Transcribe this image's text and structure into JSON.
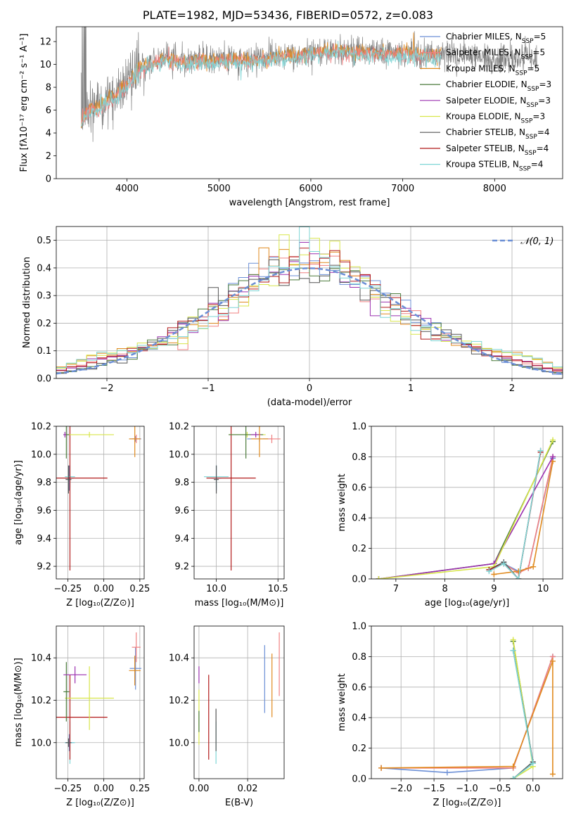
{
  "title": "PLATE=1982, MJD=53436, FIBERID=0572, z=0.083",
  "colors": {
    "chabrier_miles": "#6b8fd6",
    "salpeter_miles": "#f08080",
    "kroupa_miles": "#e08a1e",
    "chabrier_elodie": "#4a7a3a",
    "salpeter_elodie": "#9b30b0",
    "kroupa_elodie": "#d8e64a",
    "chabrier_stelib": "#555555",
    "salpeter_stelib": "#b21a1a",
    "kroupa_stelib": "#7fd6d6",
    "normal": "#6b8fd6"
  },
  "chart_data": [
    {
      "id": "spectrum",
      "type": "line",
      "title": "",
      "xlabel": "wavelength [Angstrom, rest frame]",
      "ylabel": "Flux [fλ10⁻¹⁷ erg cm⁻² s⁻¹ A⁻¹]",
      "xlim": [
        3230,
        8740
      ],
      "ylim": [
        0,
        13.3
      ],
      "xticks": [
        4000,
        5000,
        6000,
        7000,
        8000
      ],
      "yticks": [
        0,
        2,
        4,
        6,
        8,
        10,
        12
      ],
      "legend_position": "right",
      "legend": [
        "Chabrier MILES, N_SSP=5",
        "Salpeter MILES, N_SSP=5",
        "Kroupa MILES, N_SSP=5",
        "Chabrier ELODIE, N_SSP=3",
        "Salpeter ELODIE, N_SSP=3",
        "Kroupa ELODIE, N_SSP=3",
        "Chabrier STELIB, N_SSP=4",
        "Salpeter STELIB, N_SSP=4",
        "Kroupa STELIB, N_SSP=4"
      ],
      "continuum": {
        "x": [
          3500,
          3550,
          3700,
          3800,
          3900,
          4000,
          4100,
          4200,
          4400,
          4600,
          5000,
          5400,
          5800,
          6200,
          6600,
          7000,
          7400,
          7800,
          8200,
          8600
        ],
        "y": [
          5.0,
          6.0,
          6.3,
          7.0,
          7.6,
          8.3,
          9.4,
          10.0,
          10.5,
          10.3,
          10.4,
          10.5,
          10.8,
          11.2,
          11.1,
          11.0,
          10.9,
          10.6,
          10.5,
          10.3
        ]
      },
      "data_extent_angstrom": [
        3500,
        8460
      ],
      "model_extent_angstrom": [
        3500,
        7420
      ]
    },
    {
      "id": "residuals",
      "type": "line",
      "xlabel": "(data-model)/error",
      "ylabel": "Normed distribution",
      "xlim": [
        -2.5,
        2.5
      ],
      "ylim": [
        0,
        0.55
      ],
      "xticks": [
        -2,
        -1,
        0,
        1,
        2
      ],
      "yticks": [
        0.0,
        0.1,
        0.2,
        0.3,
        0.4,
        0.5
      ],
      "legend": [
        "𝒩(0, 1)"
      ],
      "legend_position": "top-right",
      "bin_width": 0.1
    },
    {
      "id": "age_vs_Z",
      "type": "scatter",
      "xlabel": "Z [log₁₀(Z/Z⊙)]",
      "ylabel": "age  [log₁₀(age/yr)]",
      "xlim": [
        -0.33,
        0.28
      ],
      "ylim": [
        9.11,
        10.2
      ],
      "xticks": [
        -0.25,
        0.0,
        0.25
      ],
      "yticks": [
        9.2,
        9.4,
        9.6,
        9.8,
        10.0,
        10.2
      ],
      "errorbars": [
        {
          "model": "chabrier_miles",
          "x": -0.24,
          "xerr": 0.03,
          "y": 9.83,
          "yerr": 0.09
        },
        {
          "model": "kroupa_stelib",
          "x": -0.235,
          "xerr": 0.035,
          "y": 9.84,
          "yerr": 0.08
        },
        {
          "model": "salpeter_stelib",
          "x": -0.235,
          "xerr": 0.26,
          "y": 9.83,
          "yerr": 0.66
        },
        {
          "model": "chabrier_stelib",
          "x": -0.245,
          "xerr": 0.02,
          "y": 9.82,
          "yerr": 0.1
        },
        {
          "model": "kroupa_elodie",
          "x": -0.1,
          "xerr": 0.17,
          "y": 10.14,
          "yerr": 0.02
        },
        {
          "model": "chabrier_elodie",
          "x": -0.26,
          "xerr": 0.02,
          "y": 10.14,
          "yerr": 0.17
        },
        {
          "model": "salpeter_elodie",
          "x": -0.27,
          "xerr": 0.01,
          "y": 10.14,
          "yerr": 0.02
        },
        {
          "model": "chabrier_miles",
          "x": 0.22,
          "xerr": 0.04,
          "y": 10.11,
          "yerr": 0.02
        },
        {
          "model": "salpeter_miles",
          "x": 0.225,
          "xerr": 0.03,
          "y": 10.11,
          "yerr": 0.03
        },
        {
          "model": "kroupa_miles",
          "x": 0.215,
          "xerr": 0.04,
          "y": 10.11,
          "yerr": 0.13
        }
      ]
    },
    {
      "id": "age_vs_mass",
      "type": "scatter",
      "xlabel": "mass [log₁₀(M/M⊙)]",
      "ylabel": "",
      "xlim": [
        9.82,
        10.55
      ],
      "ylim": [
        9.11,
        10.2
      ],
      "xticks": [
        10.0,
        10.5
      ],
      "yticks": [
        9.2,
        9.4,
        9.6,
        9.8,
        10.0,
        10.2
      ],
      "errorbars": [
        {
          "model": "chabrier_miles",
          "x": 10.0,
          "xerr": 0.04,
          "y": 9.83,
          "yerr": 0.09
        },
        {
          "model": "kroupa_stelib",
          "x": 10.0,
          "xerr": 0.1,
          "y": 9.84,
          "yerr": 0.08
        },
        {
          "model": "salpeter_stelib",
          "x": 10.12,
          "xerr": 0.2,
          "y": 9.83,
          "yerr": 0.66
        },
        {
          "model": "chabrier_stelib",
          "x": 10.0,
          "xerr": 0.02,
          "y": 9.82,
          "yerr": 0.1
        },
        {
          "model": "kroupa_elodie",
          "x": 10.25,
          "xerr": 0.15,
          "y": 10.14,
          "yerr": 0.02
        },
        {
          "model": "chabrier_elodie",
          "x": 10.24,
          "xerr": 0.14,
          "y": 10.14,
          "yerr": 0.17
        },
        {
          "model": "salpeter_elodie",
          "x": 10.32,
          "xerr": 0.04,
          "y": 10.14,
          "yerr": 0.02
        },
        {
          "model": "chabrier_miles",
          "x": 10.35,
          "xerr": 0.1,
          "y": 10.11,
          "yerr": 0.02
        },
        {
          "model": "salpeter_miles",
          "x": 10.45,
          "xerr": 0.07,
          "y": 10.11,
          "yerr": 0.03
        },
        {
          "model": "kroupa_miles",
          "x": 10.35,
          "xerr": 0.07,
          "y": 10.11,
          "yerr": 0.13
        }
      ]
    },
    {
      "id": "weight_vs_age",
      "type": "line",
      "xlabel": "age  [log₁₀(age/yr)]",
      "ylabel": "mass weight",
      "xlim": [
        6.5,
        10.4
      ],
      "ylim": [
        0,
        1.0
      ],
      "xticks": [
        7,
        8,
        9,
        10
      ],
      "yticks": [
        0.0,
        0.2,
        0.4,
        0.6,
        0.8,
        1.0
      ],
      "series": [
        {
          "model": "chabrier_miles",
          "x": [
            9.2,
            9.5,
            9.7,
            10.2
          ],
          "y": [
            0.1,
            0.05,
            0.07,
            0.79
          ]
        },
        {
          "model": "salpeter_miles",
          "x": [
            9.2,
            9.5,
            9.7,
            10.2
          ],
          "y": [
            0.1,
            0.04,
            0.07,
            0.8
          ]
        },
        {
          "model": "kroupa_miles",
          "x": [
            9.0,
            9.5,
            9.8,
            10.2
          ],
          "y": [
            0.03,
            0.05,
            0.08,
            0.77
          ]
        },
        {
          "model": "chabrier_elodie",
          "x": [
            6.65,
            9.0,
            10.2
          ],
          "y": [
            0.0,
            0.1,
            0.9
          ]
        },
        {
          "model": "salpeter_elodie",
          "x": [
            6.65,
            9.0,
            10.2
          ],
          "y": [
            0.0,
            0.1,
            0.8
          ]
        },
        {
          "model": "kroupa_elodie",
          "x": [
            6.65,
            9.0,
            10.2
          ],
          "y": [
            0.0,
            0.08,
            0.91
          ]
        },
        {
          "model": "chabrier_stelib",
          "x": [
            8.9,
            9.2,
            9.5,
            9.95
          ],
          "y": [
            0.06,
            0.11,
            0.0,
            0.84
          ]
        },
        {
          "model": "salpeter_stelib",
          "x": [
            8.9,
            9.2,
            9.5,
            9.95
          ],
          "y": [
            0.06,
            0.1,
            0.0,
            0.83
          ]
        },
        {
          "model": "kroupa_stelib",
          "x": [
            8.9,
            9.2,
            9.5,
            9.95
          ],
          "y": [
            0.05,
            0.1,
            0.0,
            0.84
          ]
        }
      ]
    },
    {
      "id": "mass_vs_Z",
      "type": "scatter",
      "xlabel": "Z [log₁₀(Z/Z⊙)]",
      "ylabel": "mass [log₁₀(M/M⊙)]",
      "xlim": [
        -0.33,
        0.28
      ],
      "ylim": [
        9.83,
        10.55
      ],
      "xticks": [
        -0.25,
        0.0,
        0.25
      ],
      "yticks": [
        10.0,
        10.2,
        10.4
      ],
      "errorbars": [
        {
          "model": "chabrier_miles",
          "x": -0.24,
          "xerr": 0.03,
          "y": 10.0,
          "yerr": 0.04
        },
        {
          "model": "kroupa_stelib",
          "x": -0.235,
          "xerr": 0.035,
          "y": 10.0,
          "yerr": 0.1
        },
        {
          "model": "salpeter_stelib",
          "x": -0.235,
          "xerr": 0.26,
          "y": 10.12,
          "yerr": 0.2
        },
        {
          "model": "chabrier_stelib",
          "x": -0.245,
          "xerr": 0.02,
          "y": 10.0,
          "yerr": 0.02
        },
        {
          "model": "kroupa_elodie",
          "x": -0.1,
          "xerr": 0.17,
          "y": 10.21,
          "yerr": 0.15
        },
        {
          "model": "chabrier_elodie",
          "x": -0.26,
          "xerr": 0.02,
          "y": 10.24,
          "yerr": 0.14
        },
        {
          "model": "salpeter_elodie",
          "x": -0.2,
          "xerr": 0.08,
          "y": 10.32,
          "yerr": 0.04
        },
        {
          "model": "chabrier_miles",
          "x": 0.22,
          "xerr": 0.04,
          "y": 10.35,
          "yerr": 0.1
        },
        {
          "model": "salpeter_miles",
          "x": 0.225,
          "xerr": 0.03,
          "y": 10.45,
          "yerr": 0.07
        },
        {
          "model": "kroupa_miles",
          "x": 0.215,
          "xerr": 0.04,
          "y": 10.34,
          "yerr": 0.07
        }
      ]
    },
    {
      "id": "mass_vs_ebv",
      "type": "scatter",
      "xlabel": "E(B-V)",
      "ylabel": "",
      "xlim": [
        -0.002,
        0.035
      ],
      "ylim": [
        9.83,
        10.55
      ],
      "xticks": [
        0.0,
        0.02
      ],
      "yticks": [
        10.0,
        10.2,
        10.4
      ],
      "errorbars": [
        {
          "model": "salpeter_elodie",
          "x": 0.0,
          "y": 10.32,
          "yerr": 0.04
        },
        {
          "model": "kroupa_elodie",
          "x": 0.0,
          "y": 10.12,
          "yerr": 0.13
        },
        {
          "model": "chabrier_elodie",
          "x": 0.0,
          "y": 10.1,
          "yerr": 0.05
        },
        {
          "model": "salpeter_stelib",
          "x": 0.004,
          "y": 10.12,
          "yerr": 0.2
        },
        {
          "model": "kroupa_stelib",
          "x": 0.007,
          "y": 10.0,
          "yerr": 0.1
        },
        {
          "model": "chabrier_stelib",
          "x": 0.007,
          "y": 10.06,
          "yerr": 0.1
        },
        {
          "model": "chabrier_miles",
          "x": 0.027,
          "y": 10.3,
          "yerr": 0.16
        },
        {
          "model": "kroupa_miles",
          "x": 0.03,
          "y": 10.27,
          "yerr": 0.15
        },
        {
          "model": "salpeter_miles",
          "x": 0.033,
          "y": 10.37,
          "yerr": 0.15
        }
      ]
    },
    {
      "id": "weight_vs_Z",
      "type": "line",
      "xlabel": "Z [log₁₀(Z/Z⊙)]",
      "ylabel": "mass weight",
      "xlim": [
        -2.45,
        0.45
      ],
      "ylim": [
        0,
        1.0
      ],
      "xticks": [
        -2.0,
        -1.5,
        -1.0,
        -0.5,
        0.0
      ],
      "yticks": [
        0.0,
        0.2,
        0.4,
        0.6,
        0.8,
        1.0
      ],
      "series": [
        {
          "model": "chabrier_miles",
          "x": [
            -2.3,
            -1.3,
            -0.3,
            0.3
          ],
          "y": [
            0.07,
            0.04,
            0.07,
            0.8
          ]
        },
        {
          "model": "salpeter_miles",
          "x": [
            -2.3,
            -0.3,
            0.3
          ],
          "y": [
            0.07,
            0.07,
            0.8
          ]
        },
        {
          "model": "kroupa_miles",
          "x": [
            -2.3,
            -0.3,
            0.3,
            0.3
          ],
          "y": [
            0.07,
            0.08,
            0.77,
            0.03
          ]
        },
        {
          "model": "chabrier_elodie",
          "x": [
            -0.3,
            0.0,
            -0.3
          ],
          "y": [
            0.9,
            0.1,
            0.0
          ]
        },
        {
          "model": "kroupa_elodie",
          "x": [
            -0.3,
            0.0,
            -0.3
          ],
          "y": [
            0.91,
            0.08,
            0.0
          ]
        },
        {
          "model": "chabrier_stelib",
          "x": [
            -0.3,
            0.0,
            -0.3
          ],
          "y": [
            0.84,
            0.11,
            0.0
          ]
        },
        {
          "model": "kroupa_stelib",
          "x": [
            -0.3,
            0.0,
            -0.3
          ],
          "y": [
            0.84,
            0.1,
            0.0
          ]
        }
      ]
    }
  ]
}
